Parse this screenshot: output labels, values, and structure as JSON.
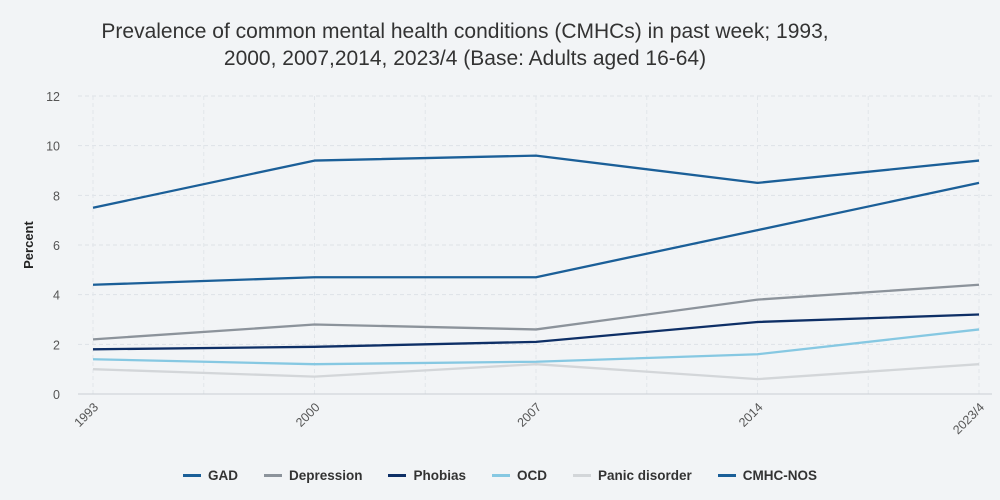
{
  "chart_data": {
    "type": "line",
    "title_line1": "Prevalence of common mental health conditions (CMHCs) in past week; 1993,",
    "title_line2": "2000, 2007,2014, 2023/4 (Base: Adults aged 16-64)",
    "ylabel": "Percent",
    "xlabel": "",
    "categories": [
      "1993",
      "2000",
      "2007",
      "2014",
      "2023/4"
    ],
    "ylim": [
      0,
      12
    ],
    "yticks": [
      0,
      2,
      4,
      6,
      8,
      10,
      12
    ],
    "grid": true,
    "legend_position": "bottom",
    "series": [
      {
        "name": "GAD",
        "color": "#1b5f98",
        "values": [
          4.4,
          4.7,
          4.7,
          6.6,
          8.5
        ]
      },
      {
        "name": "Depression",
        "color": "#8c939b",
        "values": [
          2.2,
          2.8,
          2.6,
          3.8,
          4.4
        ]
      },
      {
        "name": "Phobias",
        "color": "#0e2f66",
        "values": [
          1.8,
          1.9,
          2.1,
          2.9,
          3.2
        ]
      },
      {
        "name": "OCD",
        "color": "#86c8e2",
        "values": [
          1.4,
          1.2,
          1.3,
          1.6,
          2.6
        ]
      },
      {
        "name": "Panic disorder",
        "color": "#d3d6d9",
        "values": [
          1.0,
          0.7,
          1.2,
          0.6,
          1.2
        ]
      },
      {
        "name": "CMHC-NOS",
        "color": "#1b5f98",
        "values": [
          7.5,
          9.4,
          9.6,
          8.5,
          9.4
        ]
      }
    ]
  }
}
